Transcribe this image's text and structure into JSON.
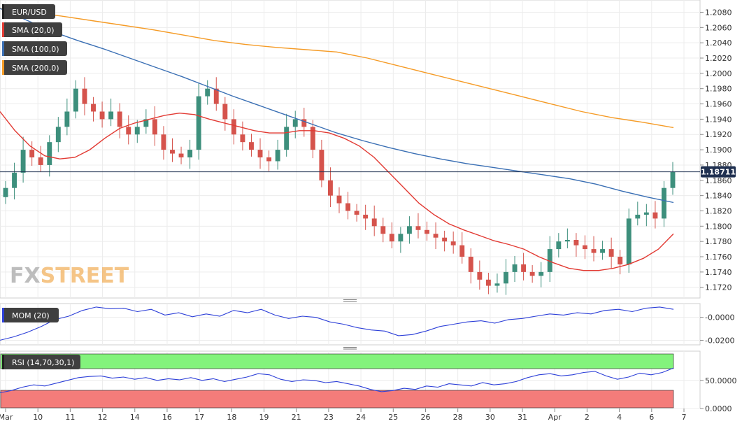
{
  "legend": {
    "symbol": "EUR/USD",
    "sma20": "SMA (20,0)",
    "sma100": "SMA (100,0)",
    "sma200": "SMA (200,0)",
    "mom": "MOM (20)",
    "rsi": "RSI (14,70,30,1)"
  },
  "watermark": {
    "part1": "FX",
    "part2": "STREET"
  },
  "colors": {
    "up": "#3d8f7c",
    "down": "#d5534c",
    "sma20": "#e23a33",
    "sma100": "#3a6fb4",
    "sma200": "#f59b26",
    "mom": "#2c3fd8",
    "rsi": "#2c3fd8",
    "overbought": "#83f37c",
    "oversold": "#f47c7a"
  },
  "current_price": "1.18711",
  "chart_data": [
    {
      "type": "candlestick",
      "x_labels": [
        "Mar",
        "10",
        "11",
        "12",
        "14",
        "16",
        "17",
        "18",
        "19",
        "21",
        "23",
        "24",
        "25",
        "26",
        "28",
        "30",
        "31",
        "Apr",
        "2",
        "4",
        "6",
        "7"
      ],
      "y_ticks": [
        "1.2080",
        "1.2060",
        "1.2040",
        "1.2020",
        "1.2000",
        "1.1980",
        "1.1960",
        "1.1940",
        "1.1920",
        "1.1900",
        "1.1880",
        "1.1860",
        "1.1840",
        "1.1820",
        "1.1800",
        "1.1780",
        "1.1760",
        "1.1740",
        "1.1720"
      ],
      "ylim": [
        1.1706,
        1.2096
      ],
      "price_series": [
        1.185,
        1.187,
        1.19,
        1.189,
        1.188,
        1.191,
        1.193,
        1.195,
        1.198,
        1.196,
        1.195,
        1.194,
        1.195,
        1.193,
        1.192,
        1.193,
        1.194,
        1.192,
        1.19,
        1.1895,
        1.189,
        1.19,
        1.197,
        1.198,
        1.196,
        1.194,
        1.192,
        1.191,
        1.19,
        1.189,
        1.1885,
        1.19,
        1.193,
        1.194,
        1.193,
        1.19,
        1.186,
        1.184,
        1.183,
        1.182,
        1.1815,
        1.181,
        1.18,
        1.179,
        1.178,
        1.179,
        1.18,
        1.1795,
        1.179,
        1.1785,
        1.178,
        1.1775,
        1.176,
        1.174,
        1.173,
        1.1722,
        1.1725,
        1.174,
        1.175,
        1.174,
        1.1735,
        1.174,
        1.177,
        1.178,
        1.1782,
        1.1775,
        1.177,
        1.1765,
        1.177,
        1.176,
        1.175,
        1.181,
        1.1815,
        1.1818,
        1.181,
        1.185,
        1.1871
      ],
      "sma20": [
        1.195,
        1.1925,
        1.1905,
        1.1892,
        1.1888,
        1.189,
        1.19,
        1.1915,
        1.1928,
        1.1935,
        1.194,
        1.1945,
        1.1948,
        1.1946,
        1.194,
        1.1935,
        1.193,
        1.1925,
        1.1922,
        1.1922,
        1.1925,
        1.1925,
        1.1922,
        1.1915,
        1.1905,
        1.189,
        1.187,
        1.185,
        1.183,
        1.1815,
        1.1803,
        1.1795,
        1.1788,
        1.1781,
        1.1776,
        1.177,
        1.176,
        1.1752,
        1.1745,
        1.1742,
        1.1742,
        1.1745,
        1.175,
        1.1758,
        1.177,
        1.179
      ],
      "sma100": [
        1.2085,
        1.207,
        1.2055,
        1.2043,
        1.2032,
        1.202,
        1.2008,
        1.1996,
        1.1983,
        1.197,
        1.1958,
        1.1946,
        1.1934,
        1.1922,
        1.1912,
        1.1903,
        1.1895,
        1.1888,
        1.1882,
        1.1877,
        1.1872,
        1.1867,
        1.1862,
        1.1855,
        1.1846,
        1.1838,
        1.1831
      ],
      "sma200": [
        1.2085,
        1.208,
        1.2075,
        1.2069,
        1.2063,
        1.2057,
        1.205,
        1.2043,
        1.2038,
        1.2034,
        1.2031,
        1.2028,
        1.202,
        1.201,
        1.2,
        1.199,
        1.198,
        1.197,
        1.196,
        1.195,
        1.1942,
        1.1936,
        1.1929
      ]
    },
    {
      "type": "line",
      "name": "MOM (20)",
      "y_ticks": [
        "-0.0000",
        "-0.0200"
      ],
      "ylim": [
        -0.024,
        0.012
      ],
      "values": [
        -0.02,
        -0.017,
        -0.013,
        -0.008,
        -0.002,
        0.001,
        0.006,
        0.009,
        0.0075,
        0.008,
        0.005,
        0.007,
        0.002,
        0.004,
        0.0005,
        0.003,
        0.001,
        0.006,
        0.004,
        0.007,
        0.002,
        -0.001,
        0.001,
        0.0,
        -0.004,
        -0.006,
        -0.009,
        -0.011,
        -0.012,
        -0.016,
        -0.015,
        -0.012,
        -0.008,
        -0.006,
        -0.004,
        -0.003,
        -0.005,
        -0.002,
        -0.001,
        0.001,
        0.003,
        0.002,
        0.004,
        0.003,
        0.006,
        0.007,
        0.005,
        0.008,
        0.009,
        0.007
      ]
    },
    {
      "type": "line",
      "name": "RSI (14,70,30,1)",
      "y_ticks": [
        "50.0000",
        "0.0000"
      ],
      "ylim": [
        0,
        102
      ],
      "overbought": 70,
      "oversold": 30,
      "values": [
        28,
        32,
        38,
        42,
        40,
        45,
        50,
        55,
        57,
        58,
        54,
        56,
        52,
        55,
        50,
        53,
        51,
        55,
        50,
        53,
        48,
        52,
        56,
        62,
        60,
        52,
        48,
        51,
        50,
        46,
        48,
        44,
        40,
        34,
        30,
        32,
        36,
        34,
        40,
        38,
        44,
        42,
        40,
        46,
        42,
        44,
        48,
        55,
        60,
        62,
        58,
        60,
        64,
        66,
        58,
        52,
        56,
        63,
        60,
        64,
        72
      ]
    }
  ]
}
